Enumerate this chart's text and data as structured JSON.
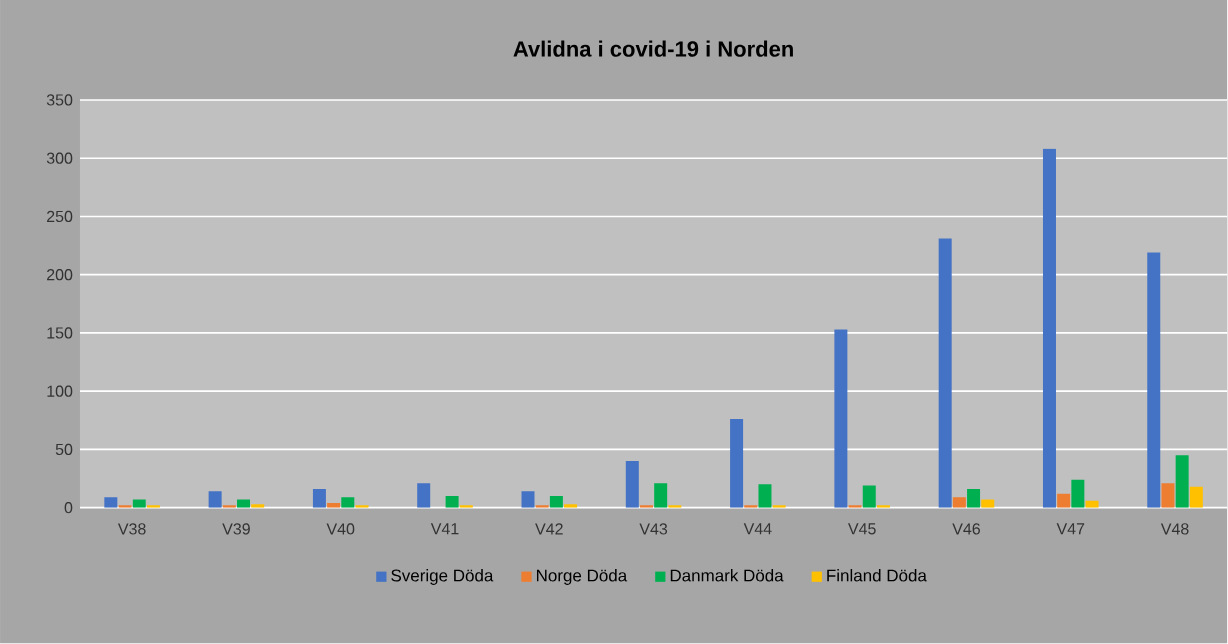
{
  "chart_data": {
    "type": "bar",
    "title": "Avlidna i covid-19 i Norden",
    "categories": [
      "V38",
      "V39",
      "V40",
      "V41",
      "V42",
      "V43",
      "V44",
      "V45",
      "V46",
      "V47",
      "V48"
    ],
    "series": [
      {
        "name": "Sverige Döda",
        "color": "#4472c4",
        "values": [
          9,
          14,
          16,
          21,
          14,
          40,
          76,
          153,
          231,
          308,
          219
        ]
      },
      {
        "name": "Norge Döda",
        "color": "#ed7d31",
        "values": [
          2,
          2,
          4,
          0,
          2,
          2,
          2,
          2,
          9,
          12,
          21
        ]
      },
      {
        "name": "Danmark Döda",
        "color": "#00b050",
        "values": [
          7,
          7,
          9,
          10,
          10,
          21,
          20,
          19,
          16,
          24,
          45
        ]
      },
      {
        "name": "Finland Döda",
        "color": "#ffc000",
        "values": [
          2,
          3,
          2,
          2,
          3,
          2,
          2,
          2,
          7,
          6,
          18
        ]
      }
    ],
    "ylim": [
      0,
      350
    ],
    "yticks": [
      0,
      50,
      100,
      150,
      200,
      250,
      300,
      350
    ],
    "grid": "y",
    "legend": "bottom"
  }
}
